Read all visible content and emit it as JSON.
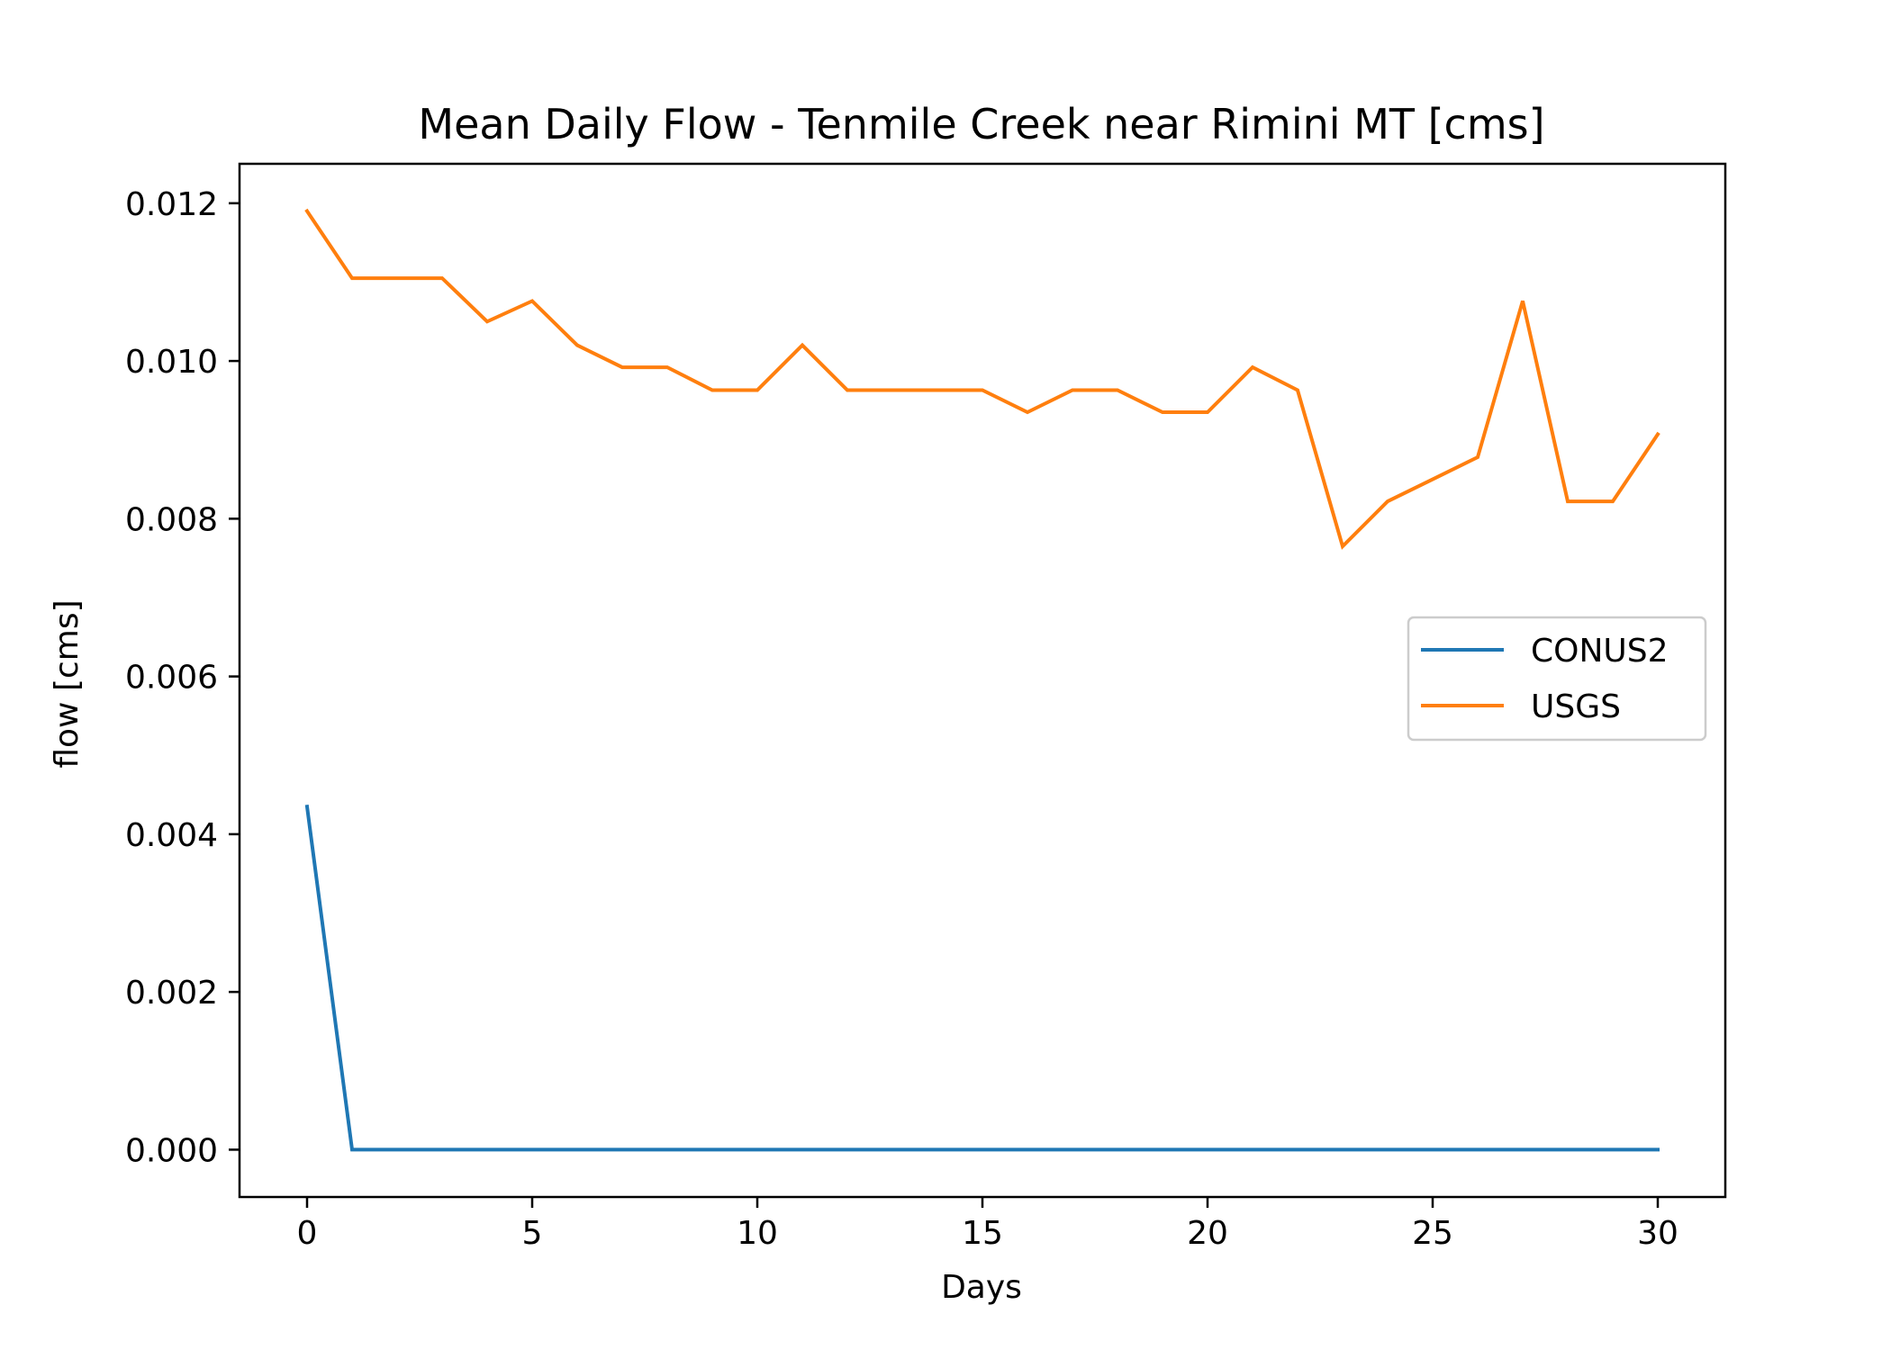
{
  "chart_data": {
    "type": "line",
    "title": "Mean Daily Flow - Tenmile Creek near Rimini MT [cms]",
    "xlabel": "Days",
    "ylabel": "flow [cms]",
    "xlim": [
      -1.5,
      31.5
    ],
    "ylim": [
      -0.0006,
      0.0125
    ],
    "xticks": [
      0,
      5,
      10,
      15,
      20,
      25,
      30
    ],
    "xtick_labels": [
      "0",
      "5",
      "10",
      "15",
      "20",
      "25",
      "30"
    ],
    "yticks": [
      0.0,
      0.002,
      0.004,
      0.006,
      0.008,
      0.01,
      0.012
    ],
    "ytick_labels": [
      "0.000",
      "0.002",
      "0.004",
      "0.006",
      "0.008",
      "0.010",
      "0.012"
    ],
    "grid": false,
    "legend_position": "center-right",
    "x": [
      0,
      1,
      2,
      3,
      4,
      5,
      6,
      7,
      8,
      9,
      10,
      11,
      12,
      13,
      14,
      15,
      16,
      17,
      18,
      19,
      20,
      21,
      22,
      23,
      24,
      25,
      26,
      27,
      28,
      29,
      30
    ],
    "series": [
      {
        "name": "CONUS2",
        "color": "#1f77b4",
        "values": [
          0.00435,
          0,
          0,
          0,
          0,
          0,
          0,
          0,
          0,
          0,
          0,
          0,
          0,
          0,
          0,
          0,
          0,
          0,
          0,
          0,
          0,
          0,
          0,
          0,
          0,
          0,
          0,
          0,
          0,
          0,
          0
        ]
      },
      {
        "name": "USGS",
        "color": "#ff7f0e",
        "values": [
          0.0119,
          0.01105,
          0.01105,
          0.01105,
          0.0105,
          0.01076,
          0.0102,
          0.00992,
          0.00992,
          0.00963,
          0.00963,
          0.0102,
          0.00963,
          0.00963,
          0.00963,
          0.00963,
          0.00935,
          0.00963,
          0.00963,
          0.00935,
          0.00935,
          0.00992,
          0.00963,
          0.00765,
          0.00822,
          0.0085,
          0.00878,
          0.01076,
          0.00822,
          0.00822,
          0.00907
        ]
      }
    ]
  }
}
